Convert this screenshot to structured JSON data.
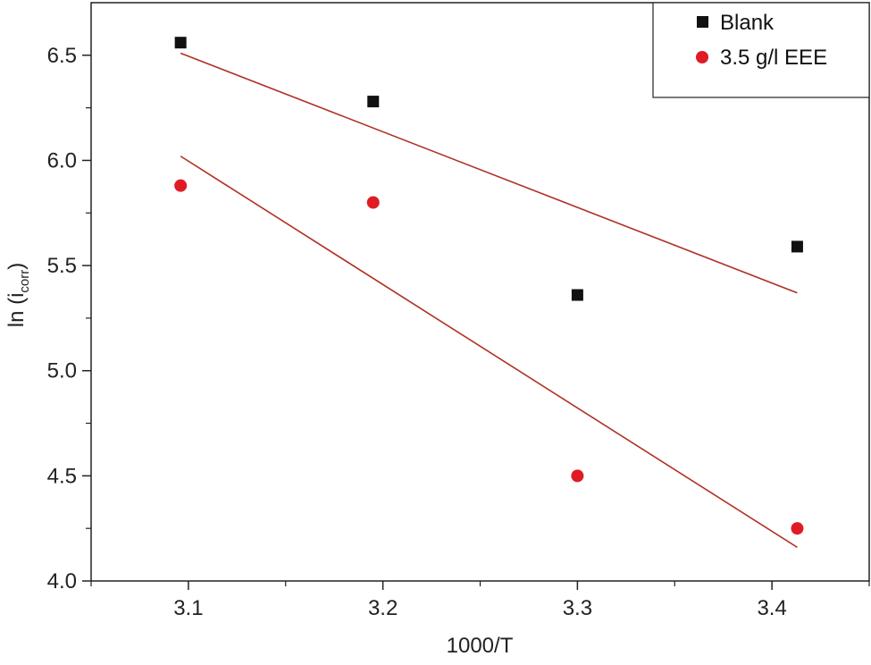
{
  "chart_data": {
    "type": "scatter",
    "xlabel": "1000/T",
    "ylabel_main": "ln (i",
    "ylabel_sub": "corr",
    "ylabel_close": ")",
    "xlim": [
      3.05,
      3.45
    ],
    "ylim": [
      4.0,
      6.75
    ],
    "xticks": [
      {
        "value": 3.1,
        "label": "3.1"
      },
      {
        "value": 3.2,
        "label": "3.2"
      },
      {
        "value": 3.3,
        "label": "3.3"
      },
      {
        "value": 3.4,
        "label": "3.4"
      }
    ],
    "xminor": [
      3.05,
      3.15,
      3.25,
      3.35,
      3.45
    ],
    "yticks": [
      {
        "value": 4.0,
        "label": "4.0"
      },
      {
        "value": 4.5,
        "label": "4.5"
      },
      {
        "value": 5.0,
        "label": "5.0"
      },
      {
        "value": 5.5,
        "label": "5.5"
      },
      {
        "value": 6.0,
        "label": "6.0"
      },
      {
        "value": 6.5,
        "label": "6.5"
      }
    ],
    "yminor": [
      4.25,
      4.75,
      5.25,
      5.75,
      6.25
    ],
    "grid": false,
    "legend_position": "top-right",
    "series": [
      {
        "name": "Blank",
        "marker": "square",
        "color": "#111111",
        "x": [
          3.096,
          3.195,
          3.3,
          3.413
        ],
        "y": [
          6.56,
          6.28,
          5.36,
          5.59
        ],
        "fit": {
          "x": [
            3.096,
            3.413
          ],
          "y": [
            6.51,
            5.37
          ],
          "color": "#b03024"
        }
      },
      {
        "name": "3.5 g/l EEE",
        "marker": "circle",
        "color": "#e01b24",
        "x": [
          3.096,
          3.195,
          3.3,
          3.413
        ],
        "y": [
          5.88,
          5.8,
          4.5,
          4.25
        ],
        "fit": {
          "x": [
            3.096,
            3.413
          ],
          "y": [
            6.02,
            4.16
          ],
          "color": "#b03024"
        }
      }
    ]
  }
}
